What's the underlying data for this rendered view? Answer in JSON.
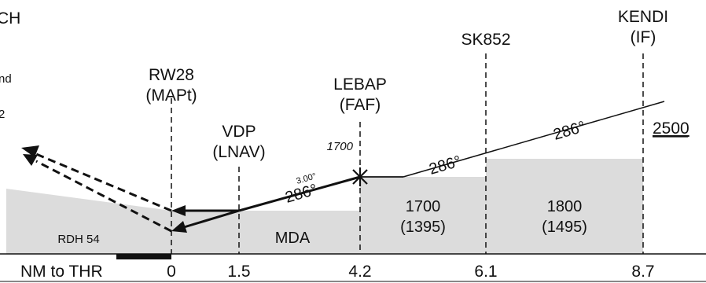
{
  "header": {
    "title_fragment": "CH"
  },
  "left_notes": {
    "note1": "nd",
    "note2": "2"
  },
  "fixes": [
    {
      "id": "RW28",
      "role": "(MAPt)"
    },
    {
      "id": "VDP",
      "role": "(LNAV)"
    },
    {
      "id": "LEBAP",
      "role": "(FAF)"
    },
    {
      "id": "SK852",
      "role": ""
    },
    {
      "id": "KENDI",
      "role": "(IF)"
    }
  ],
  "altitudes": {
    "faf_crossing": "1700",
    "if_altitude": "2500"
  },
  "courses": {
    "final_course": "286°",
    "glidepath": "3.00°",
    "seg_lebap_sk852": "286°",
    "seg_sk852_kendi": "286°"
  },
  "segment_minimums": [
    {
      "altitude": "1700",
      "height": "(1395)"
    },
    {
      "altitude": "1800",
      "height": "(1495)"
    }
  ],
  "labels": {
    "mda": "MDA",
    "rdh": "RDH 54"
  },
  "distance_scale": {
    "title": "NM to THR",
    "ticks": [
      "0",
      "1.5",
      "4.2",
      "6.1",
      "8.7"
    ]
  },
  "colors": {
    "terrain_fill": "#dcdcdc",
    "line": "#111111",
    "background": "#ffffff"
  }
}
